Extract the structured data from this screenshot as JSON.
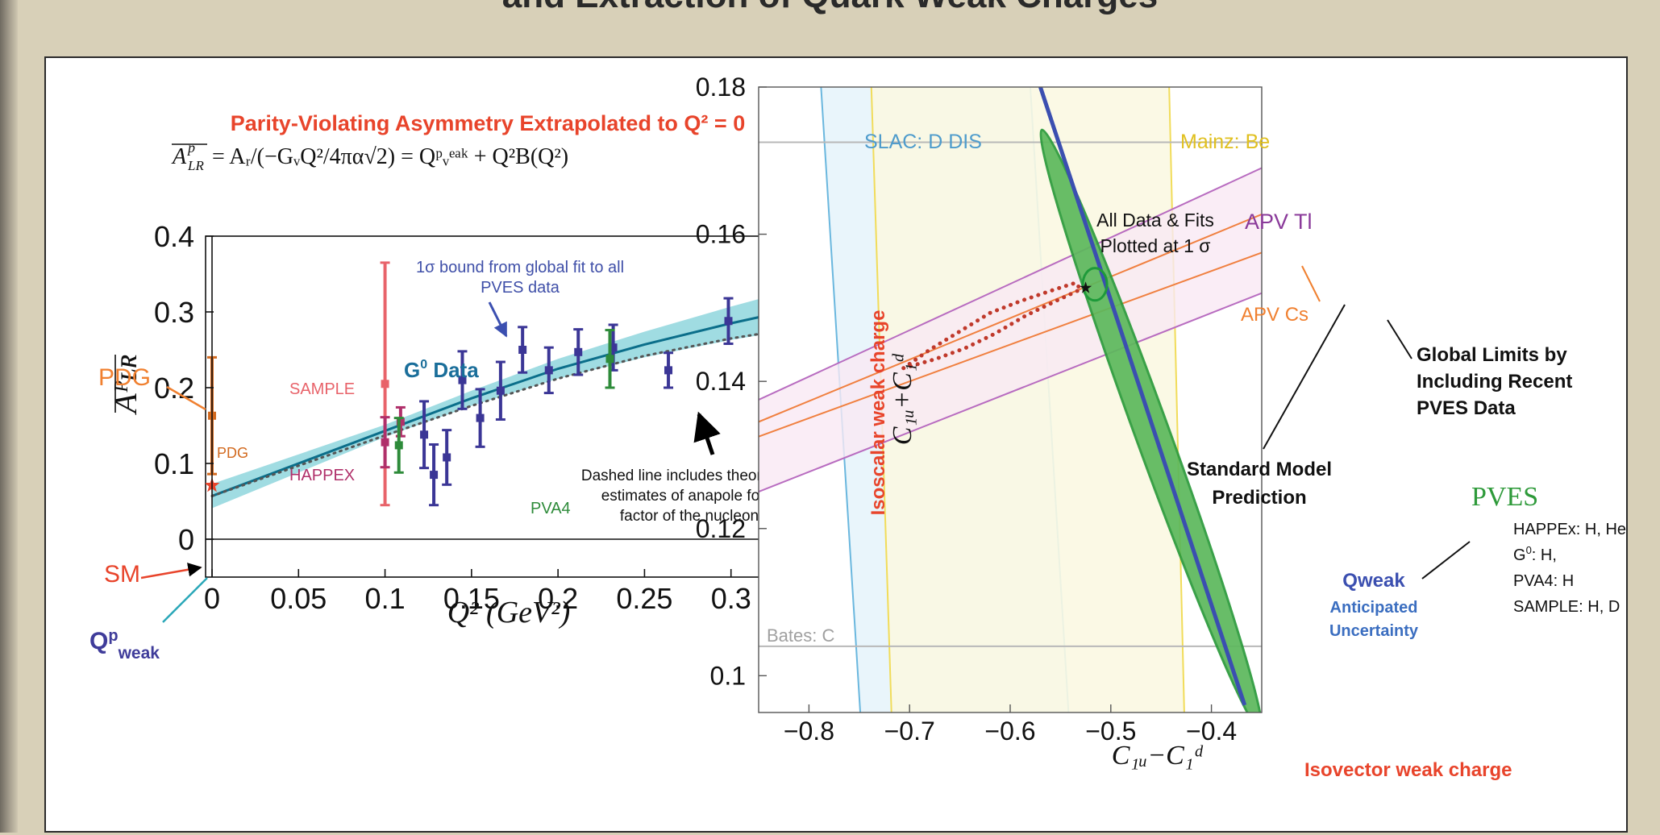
{
  "page": {
    "heading": "and Extraction of Quark Weak Charges"
  },
  "chart_data": [
    {
      "type": "scatter",
      "title": "Parity-Violating Asymmetry Extrapolated to Q² = 0",
      "formula": {
        "lhs_A": "A",
        "lhs_sup": "p",
        "lhs_sub": "LR",
        "rhs": "= Aᵣ/(−GᵥQ²/4πα√2) = Qᵖᵥᵉᵃᵏ + Q²B(Q²)"
      },
      "xlabel": "Q² (GeV²)",
      "ylabel": "Aᴾʟʀ",
      "xlim": [
        0,
        0.35
      ],
      "ylim": [
        -0.05,
        0.4
      ],
      "xticks": [
        "0",
        "0.05",
        "0.1",
        "0.15",
        "0.2",
        "0.25",
        "0.3"
      ],
      "yticks": [
        "0",
        "0.1",
        "0.2",
        "0.3",
        "0.4"
      ],
      "band": {
        "x": [
          0,
          0.05,
          0.1,
          0.15,
          0.2,
          0.25,
          0.3,
          0.35
        ],
        "center": [
          0.057,
          0.1,
          0.143,
          0.186,
          0.225,
          0.257,
          0.285,
          0.31
        ],
        "half_width": [
          0.016,
          0.012,
          0.008,
          0.01,
          0.013,
          0.017,
          0.022,
          0.028
        ]
      },
      "dashed_line": {
        "x": [
          0,
          0.05,
          0.1,
          0.15,
          0.2,
          0.25,
          0.3,
          0.35
        ],
        "y": [
          0.057,
          0.097,
          0.137,
          0.176,
          0.212,
          0.242,
          0.265,
          0.283
        ]
      },
      "series": [
        {
          "name": "G⁰ Data",
          "color": "#3b3696",
          "points": [
            {
              "x": 0.1226,
              "y": 0.138,
              "lo": 0.094,
              "hi": 0.182
            },
            {
              "x": 0.1282,
              "y": 0.085,
              "lo": 0.045,
              "hi": 0.125
            },
            {
              "x": 0.1357,
              "y": 0.108,
              "lo": 0.072,
              "hi": 0.144
            },
            {
              "x": 0.1447,
              "y": 0.21,
              "lo": 0.172,
              "hi": 0.248
            },
            {
              "x": 0.155,
              "y": 0.16,
              "lo": 0.122,
              "hi": 0.198
            },
            {
              "x": 0.1668,
              "y": 0.196,
              "lo": 0.158,
              "hi": 0.234
            },
            {
              "x": 0.1795,
              "y": 0.25,
              "lo": 0.22,
              "hi": 0.28
            },
            {
              "x": 0.1947,
              "y": 0.223,
              "lo": 0.193,
              "hi": 0.253
            },
            {
              "x": 0.2117,
              "y": 0.247,
              "lo": 0.217,
              "hi": 0.277
            },
            {
              "x": 0.2319,
              "y": 0.253,
              "lo": 0.223,
              "hi": 0.283
            },
            {
              "x": 0.2638,
              "y": 0.223,
              "lo": 0.2,
              "hi": 0.246
            },
            {
              "x": 0.2985,
              "y": 0.288,
              "lo": 0.258,
              "hi": 0.318
            }
          ]
        },
        {
          "name": "SAMPLE",
          "color": "#e8636a",
          "points": [
            {
              "x": 0.1,
              "y": 0.205,
              "lo": 0.045,
              "hi": 0.365
            }
          ]
        },
        {
          "name": "HAPPEX",
          "color": "#b0306a",
          "points": [
            {
              "x": 0.1,
              "y": 0.128,
              "lo": 0.095,
              "hi": 0.161
            },
            {
              "x": 0.109,
              "y": 0.155,
              "lo": 0.136,
              "hi": 0.174
            }
          ]
        },
        {
          "name": "PVA4",
          "color": "#2e8b3a",
          "points": [
            {
              "x": 0.108,
              "y": 0.124,
              "lo": 0.088,
              "hi": 0.16
            },
            {
              "x": 0.23,
              "y": 0.238,
              "lo": 0.2,
              "hi": 0.276
            }
          ]
        },
        {
          "name": "PDG",
          "color": "#d2691e",
          "points": [
            {
              "x": 0.0,
              "y": 0.163,
              "lo": 0.086,
              "hi": 0.24
            }
          ]
        }
      ],
      "sm_point": {
        "x": 0.0,
        "y": 0.071
      },
      "annotations": {
        "fit_note_1": "1σ bound from global fit to all",
        "fit_note_2": "PVES data",
        "g0": "G",
        "g0_sup": "0",
        "g0_rest": " Data",
        "sample": "SAMPLE",
        "happex": "HAPPEX",
        "pva4": "PVA4",
        "pdg_small": "PDG",
        "pdg_big": "PDG",
        "sm": "SM",
        "qpweak_q": "Q",
        "qpweak_sup": "p",
        "qpweak_sub": "weak",
        "dashed_1": "Dashed line includes theoretical",
        "dashed_2": "estimates of anapole form",
        "dashed_3": "factor of the nucleon"
      },
      "colors": {
        "band": "#8fd6dd",
        "fit_line": "#0b6e8a",
        "label_title": "#e8442b"
      }
    },
    {
      "type": "scatter",
      "xlabel": "C₁ᵤ−C₁ᵈ",
      "ylabel": "C₁ᵤ+C₁ᵈ",
      "xlabel_extra": "Isovector weak charge",
      "ylabel_extra": "Isoscalar weak charge",
      "xlim": [
        -0.85,
        -0.35
      ],
      "ylim": [
        0.095,
        0.18
      ],
      "xticks": [
        "−0.8",
        "−0.7",
        "−0.6",
        "−0.5",
        "−0.4"
      ],
      "yticks": [
        "0.1",
        "0.12",
        "0.14",
        "0.16",
        "0.18"
      ],
      "bands": [
        {
          "name": "SLAC: D DIS",
          "color": "#6ab7de",
          "fill": "#e7f4fb",
          "x_bottom": [
            -0.749,
            -0.542
          ],
          "x_top": [
            -0.788,
            -0.58
          ]
        },
        {
          "name": "Mainz: Be",
          "color": "#f1dc5a",
          "fill": "#fbf8e2",
          "x_bottom": [
            -0.718,
            -0.427
          ],
          "x_top": [
            -0.738,
            -0.442
          ]
        },
        {
          "name": "APV Tl",
          "color": "#b86cc0",
          "fill": "#f9e9f4",
          "y_left": [
            0.125,
            0.1375
          ],
          "y_right": [
            0.152,
            0.169
          ]
        },
        {
          "name": "APV Cs",
          "color": "#f08040",
          "y_left": [
            0.1325,
            0.1345
          ],
          "y_right": [
            0.1575,
            0.1627
          ]
        }
      ],
      "hlines": [
        {
          "y": 0.1725,
          "label": ""
        },
        {
          "y": 0.104,
          "label": "Bates: C"
        }
      ],
      "qweak_line": {
        "x": [
          -0.57,
          -0.367
        ],
        "y": [
          0.18,
          0.096
        ]
      },
      "pves_ellipse": {
        "cx": -0.4597,
        "cy": 0.1333,
        "rx": 0.017,
        "ry": 0.0435,
        "rotate": -20
      },
      "global_ellipse": {
        "cx": -0.5158,
        "cy": 0.1532,
        "rx": 0.012,
        "ry": 0.0022
      },
      "sm_point": {
        "x": -0.525,
        "y": 0.1527
      },
      "dotted_curve": {
        "x": [
          -0.706,
          -0.68,
          -0.65,
          -0.62,
          -0.59,
          -0.56,
          -0.535,
          -0.53,
          -0.555,
          -0.585,
          -0.615,
          -0.645,
          -0.675,
          -0.706
        ],
        "y": [
          0.1418,
          0.1443,
          0.1468,
          0.1493,
          0.1509,
          0.1523,
          0.1534,
          0.1525,
          0.1509,
          0.1489,
          0.1465,
          0.1445,
          0.143,
          0.1418
        ]
      },
      "annotations": {
        "all_data_1": "All Data & Fits",
        "all_data_2": "Plotted at 1 σ",
        "global_1": "Global Limits by",
        "global_2": "Including Recent",
        "global_3": "PVES Data",
        "sm_1": "Standard Model",
        "sm_2": "Prediction",
        "pves": "PVES",
        "pves_list_1": "HAPPEx: H, He",
        "pves_list_2a": "G",
        "pves_list_2sup": "0",
        "pves_list_2b": ": H,",
        "pves_list_3": "PVA4: H",
        "pves_list_4": "SAMPLE: H, D",
        "qweak_1": "Qweak",
        "qweak_2": "Anticipated",
        "qweak_3": "Uncertainty"
      },
      "colors": {
        "qweak": "#3b4fb0",
        "pves_fill": "#5cb85c",
        "pves_edge": "#2a9a3a",
        "sm_dots": "#c0392b",
        "label_red": "#e8442b"
      }
    }
  ]
}
